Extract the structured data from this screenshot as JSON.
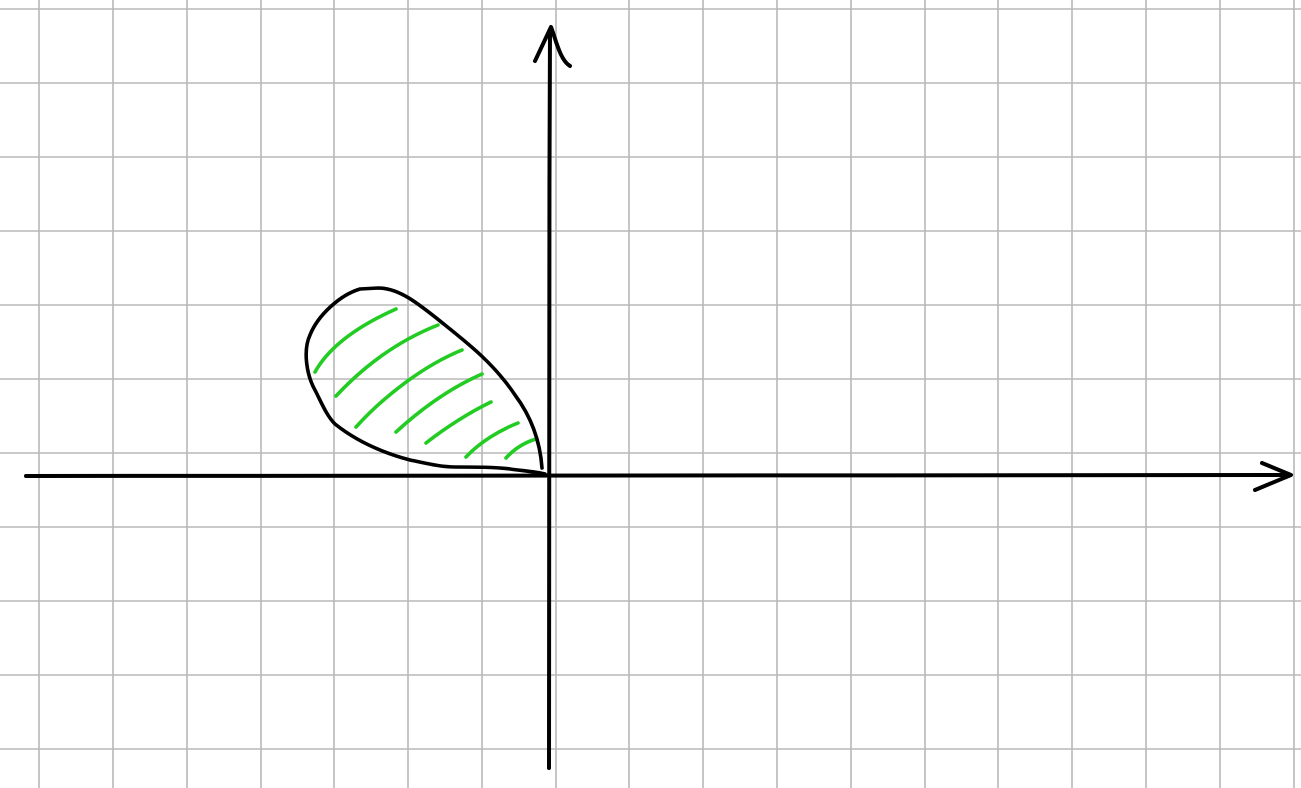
{
  "canvas": {
    "background": "#ffffff"
  },
  "grid": {
    "color": "#b8b8b8"
  },
  "axes": {
    "color": "#000000",
    "arrowheads": [
      "right",
      "up"
    ]
  },
  "region": {
    "outline_color": "#000000",
    "hatch_color": "#22cc22",
    "quadrant": "second",
    "hatching": "diagonal"
  }
}
